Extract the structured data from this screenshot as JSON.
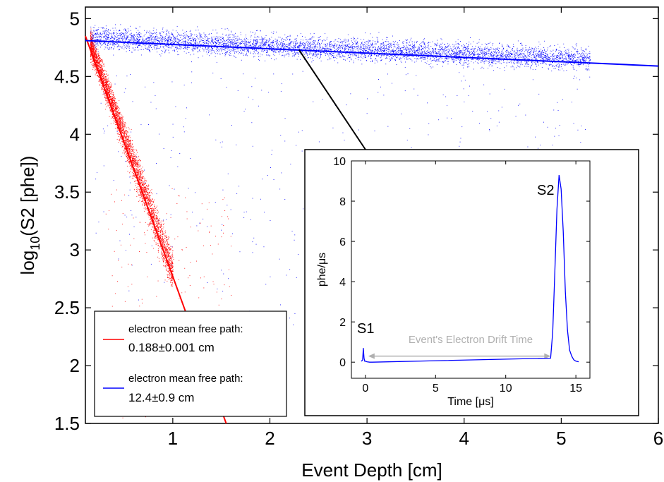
{
  "chart_data": [
    {
      "type": "scatter",
      "xlabel": "Event Depth [cm]",
      "ylabel_base": "log",
      "ylabel_sub": "10",
      "ylabel_rest": "(S2 [phe])",
      "xlim": [
        0.1,
        6
      ],
      "ylim": [
        1.5,
        5.1
      ],
      "xticks": [
        1,
        2,
        3,
        4,
        5,
        6
      ],
      "yticks": [
        1.5,
        2,
        2.5,
        3,
        3.5,
        4,
        4.5,
        5
      ],
      "xtick_labels": [
        "1",
        "2",
        "3",
        "4",
        "5",
        "6"
      ],
      "ytick_labels": [
        "1.5",
        "2",
        "2.5",
        "3",
        "3.5",
        "4",
        "4.5",
        "5"
      ],
      "grid": false,
      "legend_position": "bottom-left",
      "series": [
        {
          "name_line1": "electron mean free path:",
          "name_line2": "0.188±0.001 cm",
          "color": "#ff0000",
          "scatter_cloud": {
            "x_range": [
              0.15,
              1.0
            ],
            "y_at_x_0_15": 4.78,
            "slope_per_cm": -2.31,
            "spread": 0.12,
            "tail": "sparse red points down to 1.5"
          },
          "fit_line": {
            "x": [
              0.1,
              1.55
            ],
            "y": [
              4.85,
              1.5
            ]
          }
        },
        {
          "name_line1": "electron mean free path:",
          "name_line2": "12.4±0.9 cm",
          "color": "#0000ff",
          "scatter_cloud": {
            "x_range": [
              0.15,
              5.3
            ],
            "y_center": 4.75,
            "slope_per_cm": -0.035,
            "spread": 0.12,
            "tail": "sparse blue points down to 1.5"
          },
          "fit_line": {
            "x": [
              0.1,
              6.0
            ],
            "y": [
              4.81,
              4.59
            ]
          }
        }
      ]
    },
    {
      "type": "line",
      "xlabel": "Time [μs]",
      "ylabel": "phe/μs",
      "xlim": [
        -1,
        16
      ],
      "ylim": [
        -0.8,
        10
      ],
      "xticks": [
        0,
        5,
        10,
        15
      ],
      "yticks": [
        0,
        2,
        4,
        6,
        8,
        10
      ],
      "xtick_labels": [
        "0",
        "5",
        "10",
        "15"
      ],
      "ytick_labels": [
        "0",
        "2",
        "4",
        "6",
        "8",
        "10"
      ],
      "series": [
        {
          "color": "#0000ff",
          "x": [
            -0.3,
            -0.2,
            -0.15,
            -0.1,
            -0.05,
            0.0,
            0.1,
            0.3,
            0.5,
            13.2,
            13.35,
            13.5,
            13.65,
            13.8,
            13.95,
            14.1,
            14.25,
            14.4,
            14.55,
            14.7,
            14.85,
            15.0,
            15.2
          ],
          "y": [
            0.05,
            0.1,
            0.7,
            0.2,
            0.05,
            0.05,
            0.02,
            0.0,
            0.0,
            0.2,
            1.5,
            4.5,
            7.6,
            9.3,
            8.6,
            6.5,
            3.5,
            1.6,
            0.6,
            0.3,
            0.12,
            0.05,
            0.02
          ]
        }
      ],
      "annotations": {
        "s1": "S1",
        "s2": "S2",
        "drift": "Event's Electron Drift Time",
        "drift_x": [
          0.2,
          13.2
        ],
        "drift_y": 0.3
      }
    }
  ],
  "connector": {
    "from_x": 2.3,
    "from_y": 4.73,
    "color": "#000000"
  },
  "colors": {
    "red": "#ff0000",
    "blue": "#0000ff",
    "arrow": "#b0b0b0",
    "axis": "#000000"
  }
}
